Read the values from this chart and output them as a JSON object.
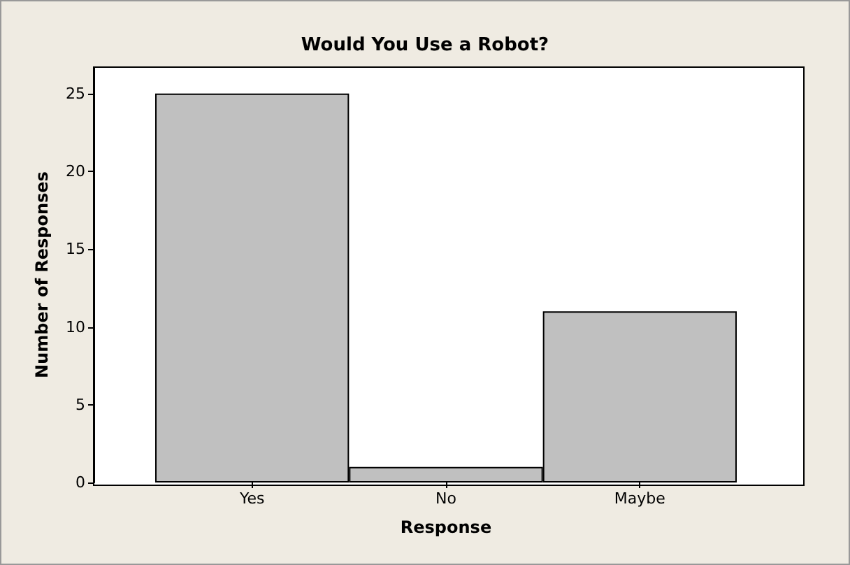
{
  "chart_data": {
    "type": "bar",
    "title": "Would You Use a Robot?",
    "xlabel": "Response",
    "ylabel": "Number of Responses",
    "categories": [
      "Yes",
      "No",
      "Maybe"
    ],
    "values": [
      25,
      1,
      11
    ],
    "color": "#c0c0c0",
    "ylim": [
      0,
      26.7
    ],
    "yticks": [
      0,
      5,
      10,
      15,
      20,
      25
    ],
    "grid": false
  }
}
